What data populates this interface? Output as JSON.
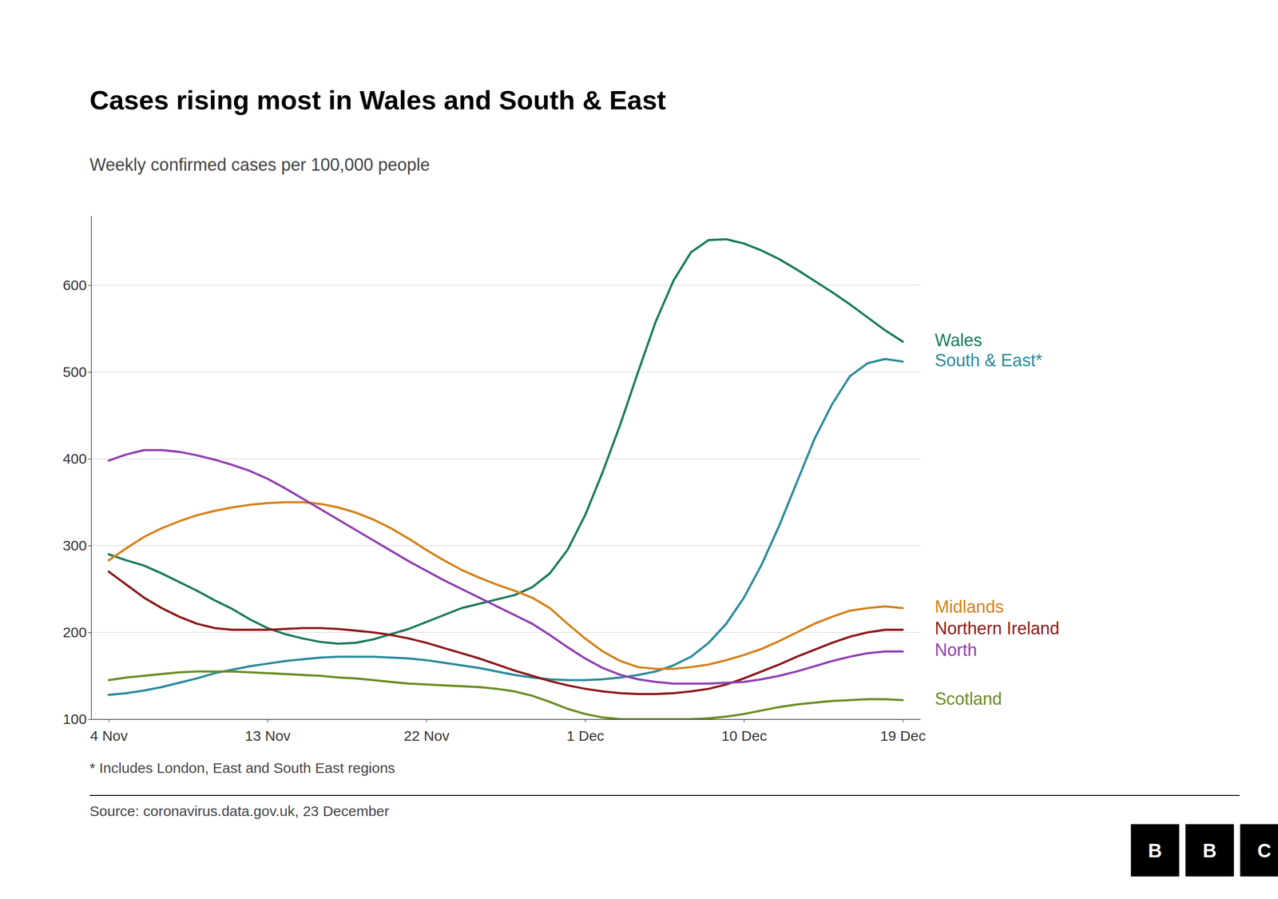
{
  "chart_data": {
    "type": "line",
    "title": "Cases rising most in Wales and South & East",
    "subtitle": "Weekly confirmed cases per 100,000 people",
    "footnote": "* Includes London, East and South East regions",
    "source": "Source: coronavirus.data.gov.uk, 23 December",
    "logo": [
      "B",
      "B",
      "C"
    ],
    "categories": [
      "4 Nov",
      null,
      null,
      null,
      null,
      null,
      null,
      null,
      null,
      "13 Nov",
      null,
      null,
      null,
      null,
      null,
      null,
      null,
      null,
      "22 Nov",
      null,
      null,
      null,
      null,
      null,
      null,
      null,
      null,
      "1 Dec",
      null,
      null,
      null,
      null,
      null,
      null,
      null,
      null,
      "10 Dec",
      null,
      null,
      null,
      null,
      null,
      null,
      null,
      null,
      "19 Dec"
    ],
    "ylim": [
      100,
      680
    ],
    "yticks": [
      100,
      200,
      300,
      400,
      500,
      600
    ],
    "grid": true,
    "series": [
      {
        "name": "Wales",
        "color": "#1a7a5e",
        "values": [
          290,
          283,
          277,
          268,
          258,
          248,
          237,
          227,
          215,
          205,
          198,
          193,
          189,
          187,
          188,
          192,
          198,
          204,
          212,
          220,
          228,
          233,
          238,
          243,
          252,
          268,
          295,
          335,
          385,
          440,
          500,
          558,
          605,
          638,
          652,
          653,
          648,
          640,
          630,
          618,
          605,
          592,
          578,
          563,
          548,
          535
        ]
      },
      {
        "name": "South & East*",
        "color": "#2b8a9a",
        "values": [
          128,
          130,
          133,
          137,
          142,
          147,
          153,
          157,
          161,
          164,
          167,
          169,
          171,
          172,
          172,
          172,
          171,
          170,
          168,
          165,
          162,
          159,
          155,
          151,
          148,
          146,
          145,
          145,
          146,
          148,
          151,
          155,
          162,
          172,
          188,
          210,
          240,
          278,
          323,
          373,
          423,
          463,
          495,
          510,
          515,
          512
        ]
      },
      {
        "name": "Midlands",
        "color": "#d4821a",
        "values": [
          283,
          297,
          310,
          320,
          328,
          335,
          340,
          344,
          347,
          349,
          350,
          350,
          348,
          344,
          338,
          330,
          320,
          308,
          295,
          283,
          272,
          263,
          255,
          248,
          240,
          228,
          210,
          193,
          178,
          167,
          160,
          158,
          158,
          160,
          163,
          168,
          174,
          181,
          190,
          200,
          210,
          218,
          225,
          228,
          230,
          228
        ]
      },
      {
        "name": "Northern Ireland",
        "color": "#8b1a1a",
        "values": [
          270,
          255,
          240,
          228,
          218,
          210,
          205,
          203,
          203,
          203,
          204,
          205,
          205,
          204,
          202,
          200,
          197,
          193,
          188,
          182,
          176,
          170,
          163,
          156,
          150,
          144,
          139,
          135,
          132,
          130,
          129,
          129,
          130,
          132,
          135,
          140,
          147,
          155,
          163,
          172,
          180,
          188,
          195,
          200,
          203,
          203
        ]
      },
      {
        "name": "North",
        "color": "#9040b0",
        "values": [
          398,
          405,
          410,
          410,
          408,
          404,
          399,
          393,
          386,
          377,
          366,
          354,
          342,
          330,
          318,
          306,
          294,
          282,
          271,
          260,
          250,
          240,
          230,
          220,
          210,
          197,
          183,
          170,
          159,
          151,
          146,
          143,
          141,
          141,
          141,
          142,
          143,
          146,
          150,
          155,
          161,
          167,
          172,
          176,
          178,
          178
        ]
      },
      {
        "name": "Scotland",
        "color": "#6b8c23",
        "values": [
          145,
          148,
          150,
          152,
          154,
          155,
          155,
          155,
          154,
          153,
          152,
          151,
          150,
          148,
          147,
          145,
          143,
          141,
          140,
          139,
          138,
          137,
          135,
          132,
          127,
          120,
          112,
          106,
          102,
          100,
          100,
          100,
          100,
          100,
          101,
          103,
          106,
          110,
          114,
          117,
          119,
          121,
          122,
          123,
          123,
          122
        ]
      }
    ]
  }
}
